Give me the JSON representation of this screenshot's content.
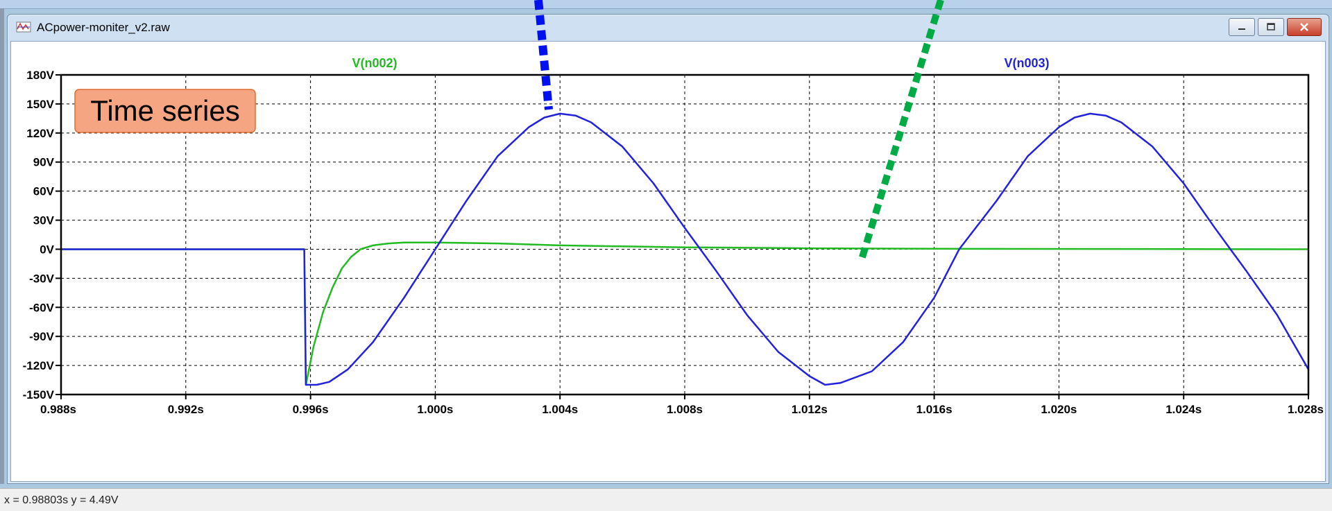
{
  "window": {
    "title": "ACpower-moniter_v2.raw",
    "app_icon": "ltspice-waveform-icon",
    "buttons": [
      "minimize-icon",
      "maximize-icon",
      "close-icon"
    ]
  },
  "status_bar": {
    "cursor_readout": "x = 0.98803s    y = 4.49V"
  },
  "annotation": {
    "label": "Time series"
  },
  "colors": {
    "v_n002": "#22bb22",
    "v_n003": "#2222dd",
    "callout_fill": "#f5a582",
    "arrow_blue": "#0010ee",
    "arrow_green": "#00aa44"
  },
  "chart_data": {
    "type": "line",
    "title": "",
    "xlabel": "",
    "ylabel": "",
    "xlim": [
      0.988,
      1.028
    ],
    "ylim": [
      -150,
      180
    ],
    "grid": true,
    "x_ticks": [
      0.988,
      0.992,
      0.996,
      1.0,
      1.004,
      1.008,
      1.012,
      1.016,
      1.02,
      1.024,
      1.028
    ],
    "x_tick_labels": [
      "0.988s",
      "0.992s",
      "0.996s",
      "1.000s",
      "1.004s",
      "1.008s",
      "1.012s",
      "1.016s",
      "1.020s",
      "1.024s",
      "1.028s"
    ],
    "y_ticks": [
      180,
      150,
      120,
      90,
      60,
      30,
      0,
      -30,
      -60,
      -90,
      -120,
      -150
    ],
    "y_tick_labels": [
      "180V",
      "150V",
      "120V",
      "90V",
      "60V",
      "30V",
      "0V",
      "-30V",
      "-60V",
      "-90V",
      "-120V",
      "-150V"
    ],
    "series": [
      {
        "name": "V(n002)",
        "color": "#22bb22",
        "points": [
          [
            0.988,
            0
          ],
          [
            0.9958,
            0
          ],
          [
            0.99585,
            -140
          ],
          [
            0.9961,
            -100
          ],
          [
            0.9964,
            -65
          ],
          [
            0.9967,
            -40
          ],
          [
            0.997,
            -20
          ],
          [
            0.9973,
            -8
          ],
          [
            0.9976,
            0
          ],
          [
            0.998,
            4
          ],
          [
            0.9985,
            6
          ],
          [
            0.999,
            7
          ],
          [
            1.0,
            7
          ],
          [
            1.002,
            6
          ],
          [
            1.004,
            4
          ],
          [
            1.008,
            2
          ],
          [
            1.012,
            1
          ],
          [
            1.016,
            0.5
          ],
          [
            1.02,
            0.3
          ],
          [
            1.028,
            0
          ]
        ]
      },
      {
        "name": "V(n003)",
        "color": "#2222dd",
        "points": [
          [
            0.988,
            0
          ],
          [
            0.9958,
            0
          ],
          [
            0.99585,
            -140
          ],
          [
            0.9962,
            -140
          ],
          [
            0.9966,
            -137
          ],
          [
            0.9972,
            -124
          ],
          [
            0.998,
            -96
          ],
          [
            0.999,
            -50
          ],
          [
            1.0,
            0
          ],
          [
            1.001,
            50
          ],
          [
            1.002,
            96
          ],
          [
            1.003,
            126
          ],
          [
            1.0035,
            136
          ],
          [
            1.004,
            140
          ],
          [
            1.0045,
            138
          ],
          [
            1.005,
            131
          ],
          [
            1.006,
            106
          ],
          [
            1.007,
            68
          ],
          [
            1.008,
            22
          ],
          [
            1.0085,
            0
          ],
          [
            1.009,
            -22
          ],
          [
            1.01,
            -68
          ],
          [
            1.011,
            -106
          ],
          [
            1.012,
            -131
          ],
          [
            1.0125,
            -140
          ],
          [
            1.013,
            -138
          ],
          [
            1.014,
            -126
          ],
          [
            1.015,
            -96
          ],
          [
            1.016,
            -50
          ],
          [
            1.0168,
            0
          ],
          [
            1.018,
            50
          ],
          [
            1.019,
            96
          ],
          [
            1.02,
            126
          ],
          [
            1.0205,
            136
          ],
          [
            1.021,
            140
          ],
          [
            1.0215,
            138
          ],
          [
            1.022,
            131
          ],
          [
            1.023,
            106
          ],
          [
            1.024,
            68
          ],
          [
            1.025,
            22
          ],
          [
            1.0255,
            0
          ],
          [
            1.026,
            -22
          ],
          [
            1.027,
            -68
          ],
          [
            1.028,
            -124
          ]
        ]
      }
    ]
  }
}
